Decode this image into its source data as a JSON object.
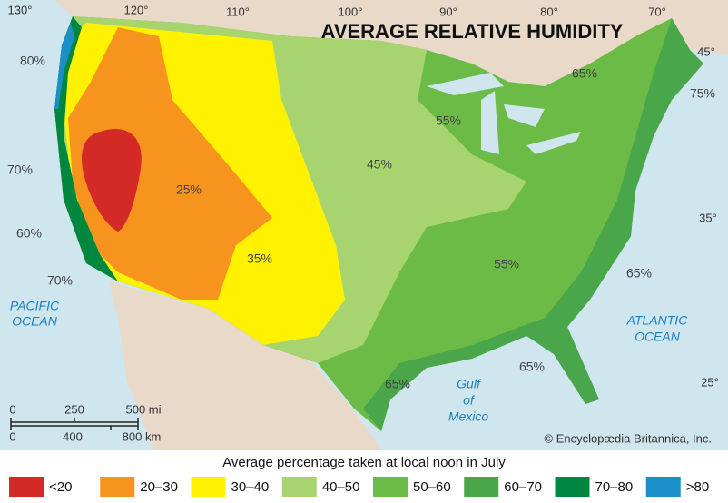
{
  "title": "AVERAGE RELATIVE HUMIDITY",
  "longitudes": [
    "130°",
    "120°",
    "110°",
    "100°",
    "90°",
    "80°",
    "70°"
  ],
  "latitudes": [
    "45°",
    "35°",
    "25°"
  ],
  "contour_labels": [
    "80%",
    "70%",
    "60%",
    "70%",
    "25%",
    "35%",
    "45%",
    "55%",
    "65%",
    "75%",
    "55%",
    "65%",
    "65%",
    "65%"
  ],
  "water_labels": {
    "pacific": [
      "PACIFIC",
      "OCEAN"
    ],
    "atlantic": [
      "ATLANTIC",
      "OCEAN"
    ],
    "gulf": [
      "Gulf",
      "of",
      "Mexico"
    ]
  },
  "scale": {
    "miles": [
      "0",
      "250",
      "500 mi"
    ],
    "km": [
      "0",
      "400",
      "800 km"
    ]
  },
  "credit": "© Encyclopædia Britannica, Inc.",
  "legend": {
    "caption": "Average percentage taken at local noon in July",
    "items": [
      {
        "label": "<20",
        "color": "#d42a27"
      },
      {
        "label": "20–30",
        "color": "#f7941d"
      },
      {
        "label": "30–40",
        "color": "#fff200"
      },
      {
        "label": "40–50",
        "color": "#a8d46f"
      },
      {
        "label": "50–60",
        "color": "#6dbb47"
      },
      {
        "label": "60–70",
        "color": "#4aa64a"
      },
      {
        "label": "70–80",
        "color": "#00873f"
      },
      {
        "label": ">80",
        "color": "#1b8fc9"
      }
    ]
  }
}
